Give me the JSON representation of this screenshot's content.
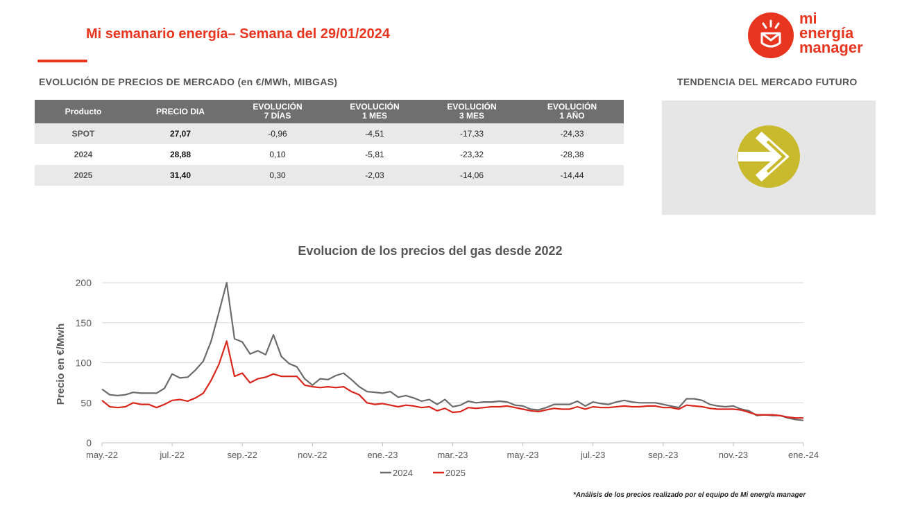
{
  "header": {
    "title": "Mi semanario energía– Semana del 29/01/2024",
    "logo_lines": [
      "mi",
      "energía",
      "manager"
    ]
  },
  "table": {
    "section_title": "EVOLUCIÓN DE PRECIOS DE MERCADO (en €/MWh, MIBGAS)",
    "headers": [
      [
        "Producto"
      ],
      [
        "PRECIO DIA"
      ],
      [
        "EVOLUCIÓN",
        "7 DÍAS"
      ],
      [
        "EVOLUCIÓN",
        "1 MES"
      ],
      [
        "EVOLUCIÓN",
        "3 MES"
      ],
      [
        "EVOLUCIÓN",
        "1 AÑO"
      ]
    ],
    "rows": [
      [
        "SPOT",
        "27,07",
        "-0,96",
        "-4,51",
        "-17,33",
        "-24,33"
      ],
      [
        "2024",
        "28,88",
        "0,10",
        "-5,81",
        "-23,32",
        "-28,38"
      ],
      [
        "2025",
        "31,40",
        "0,30",
        "-2,03",
        "-14,06",
        "-14,44"
      ]
    ]
  },
  "future": {
    "section_title": "TENDENCIA DEL MERCADO FUTURO",
    "trend_icon": "arrow-right-icon",
    "circle_color": "#c9b92c"
  },
  "colors": {
    "accent": "#e8351f",
    "series_2024": "#6b6b6b",
    "series_2025": "#d9261c"
  },
  "chart_data": {
    "type": "line",
    "title": "Evolucion de los precios del gas desde 2022",
    "xlabel": "",
    "ylabel": "Precio en €/Mwh",
    "ylim": [
      0,
      200
    ],
    "yticks": [
      0,
      50,
      100,
      150,
      200
    ],
    "x_tick_labels": [
      "may.-22",
      "jul.-22",
      "sep.-22",
      "nov.-22",
      "ene.-23",
      "mar.-23",
      "may.-23",
      "jul.-23",
      "sep.-23",
      "nov.-23",
      "ene.-24"
    ],
    "grid": "horizontal",
    "legend_position": "bottom",
    "series": [
      {
        "name": "2024",
        "values": [
          67,
          60,
          59,
          60,
          63,
          62,
          62,
          62,
          68,
          86,
          81,
          82,
          91,
          102,
          127,
          163,
          200,
          130,
          126,
          111,
          115,
          110,
          135,
          108,
          99,
          95,
          80,
          72,
          80,
          79,
          84,
          87,
          79,
          70,
          64,
          63,
          62,
          64,
          57,
          59,
          56,
          52,
          54,
          48,
          54,
          45,
          47,
          52,
          50,
          51,
          51,
          52,
          51,
          47,
          46,
          42,
          41,
          44,
          48,
          48,
          48,
          52,
          46,
          51,
          49,
          48,
          51,
          53,
          51,
          50,
          50,
          50,
          48,
          46,
          44,
          55,
          55,
          53,
          48,
          46,
          45,
          46,
          42,
          40,
          34,
          35,
          34,
          34,
          31,
          29,
          28
        ]
      },
      {
        "name": "2025",
        "values": [
          53,
          45,
          44,
          45,
          50,
          48,
          48,
          44,
          48,
          53,
          54,
          52,
          56,
          62,
          78,
          98,
          127,
          83,
          87,
          75,
          80,
          82,
          86,
          83,
          83,
          83,
          72,
          70,
          69,
          70,
          69,
          70,
          64,
          60,
          50,
          48,
          49,
          47,
          45,
          47,
          46,
          44,
          45,
          40,
          43,
          38,
          39,
          44,
          43,
          44,
          45,
          45,
          46,
          44,
          42,
          40,
          39,
          41,
          43,
          42,
          42,
          45,
          42,
          45,
          44,
          44,
          45,
          46,
          45,
          45,
          46,
          46,
          44,
          44,
          42,
          47,
          46,
          45,
          43,
          42,
          42,
          42,
          41,
          38,
          35,
          35,
          35,
          34,
          32,
          31,
          31
        ]
      }
    ]
  },
  "footnote": "*Análisis de los precios realizado por el equipo de Mi energía manager"
}
